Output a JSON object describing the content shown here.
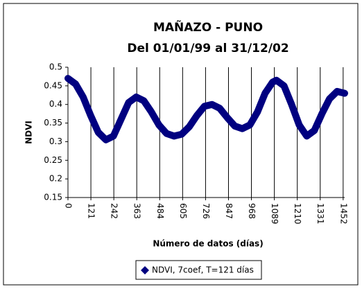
{
  "chart_data": {
    "type": "line",
    "title": "MAÑAZO - PUNO",
    "subtitle": "Del 01/01/99 al 31/12/02",
    "x_label": "Número de datos (días)",
    "y_label": "NDVI",
    "x": [
      0,
      40,
      80,
      120,
      160,
      200,
      240,
      280,
      320,
      360,
      400,
      440,
      480,
      520,
      560,
      600,
      640,
      680,
      720,
      760,
      800,
      840,
      880,
      920,
      960,
      1000,
      1040,
      1080,
      1100,
      1140,
      1180,
      1220,
      1260,
      1300,
      1340,
      1380,
      1420,
      1460
    ],
    "series": [
      {
        "name": "NDVI, 7coef, T=121 días",
        "color": "#000080",
        "values": [
          0.47,
          0.455,
          0.42,
          0.37,
          0.325,
          0.305,
          0.315,
          0.36,
          0.405,
          0.42,
          0.41,
          0.38,
          0.345,
          0.322,
          0.315,
          0.32,
          0.34,
          0.37,
          0.395,
          0.4,
          0.39,
          0.365,
          0.342,
          0.335,
          0.345,
          0.38,
          0.43,
          0.46,
          0.465,
          0.45,
          0.4,
          0.345,
          0.315,
          0.33,
          0.375,
          0.415,
          0.435,
          0.43
        ]
      }
    ],
    "xlim": [
      0,
      1460
    ],
    "xticks": [
      0,
      121,
      242,
      363,
      484,
      605,
      726,
      847,
      968,
      1089,
      1210,
      1331,
      1452
    ],
    "ylim": [
      0.15,
      0.5
    ],
    "yticks": [
      0.15,
      0.2,
      0.25,
      0.3,
      0.35,
      0.4,
      0.45,
      0.5
    ],
    "grid": "x",
    "legend": "bottom"
  }
}
